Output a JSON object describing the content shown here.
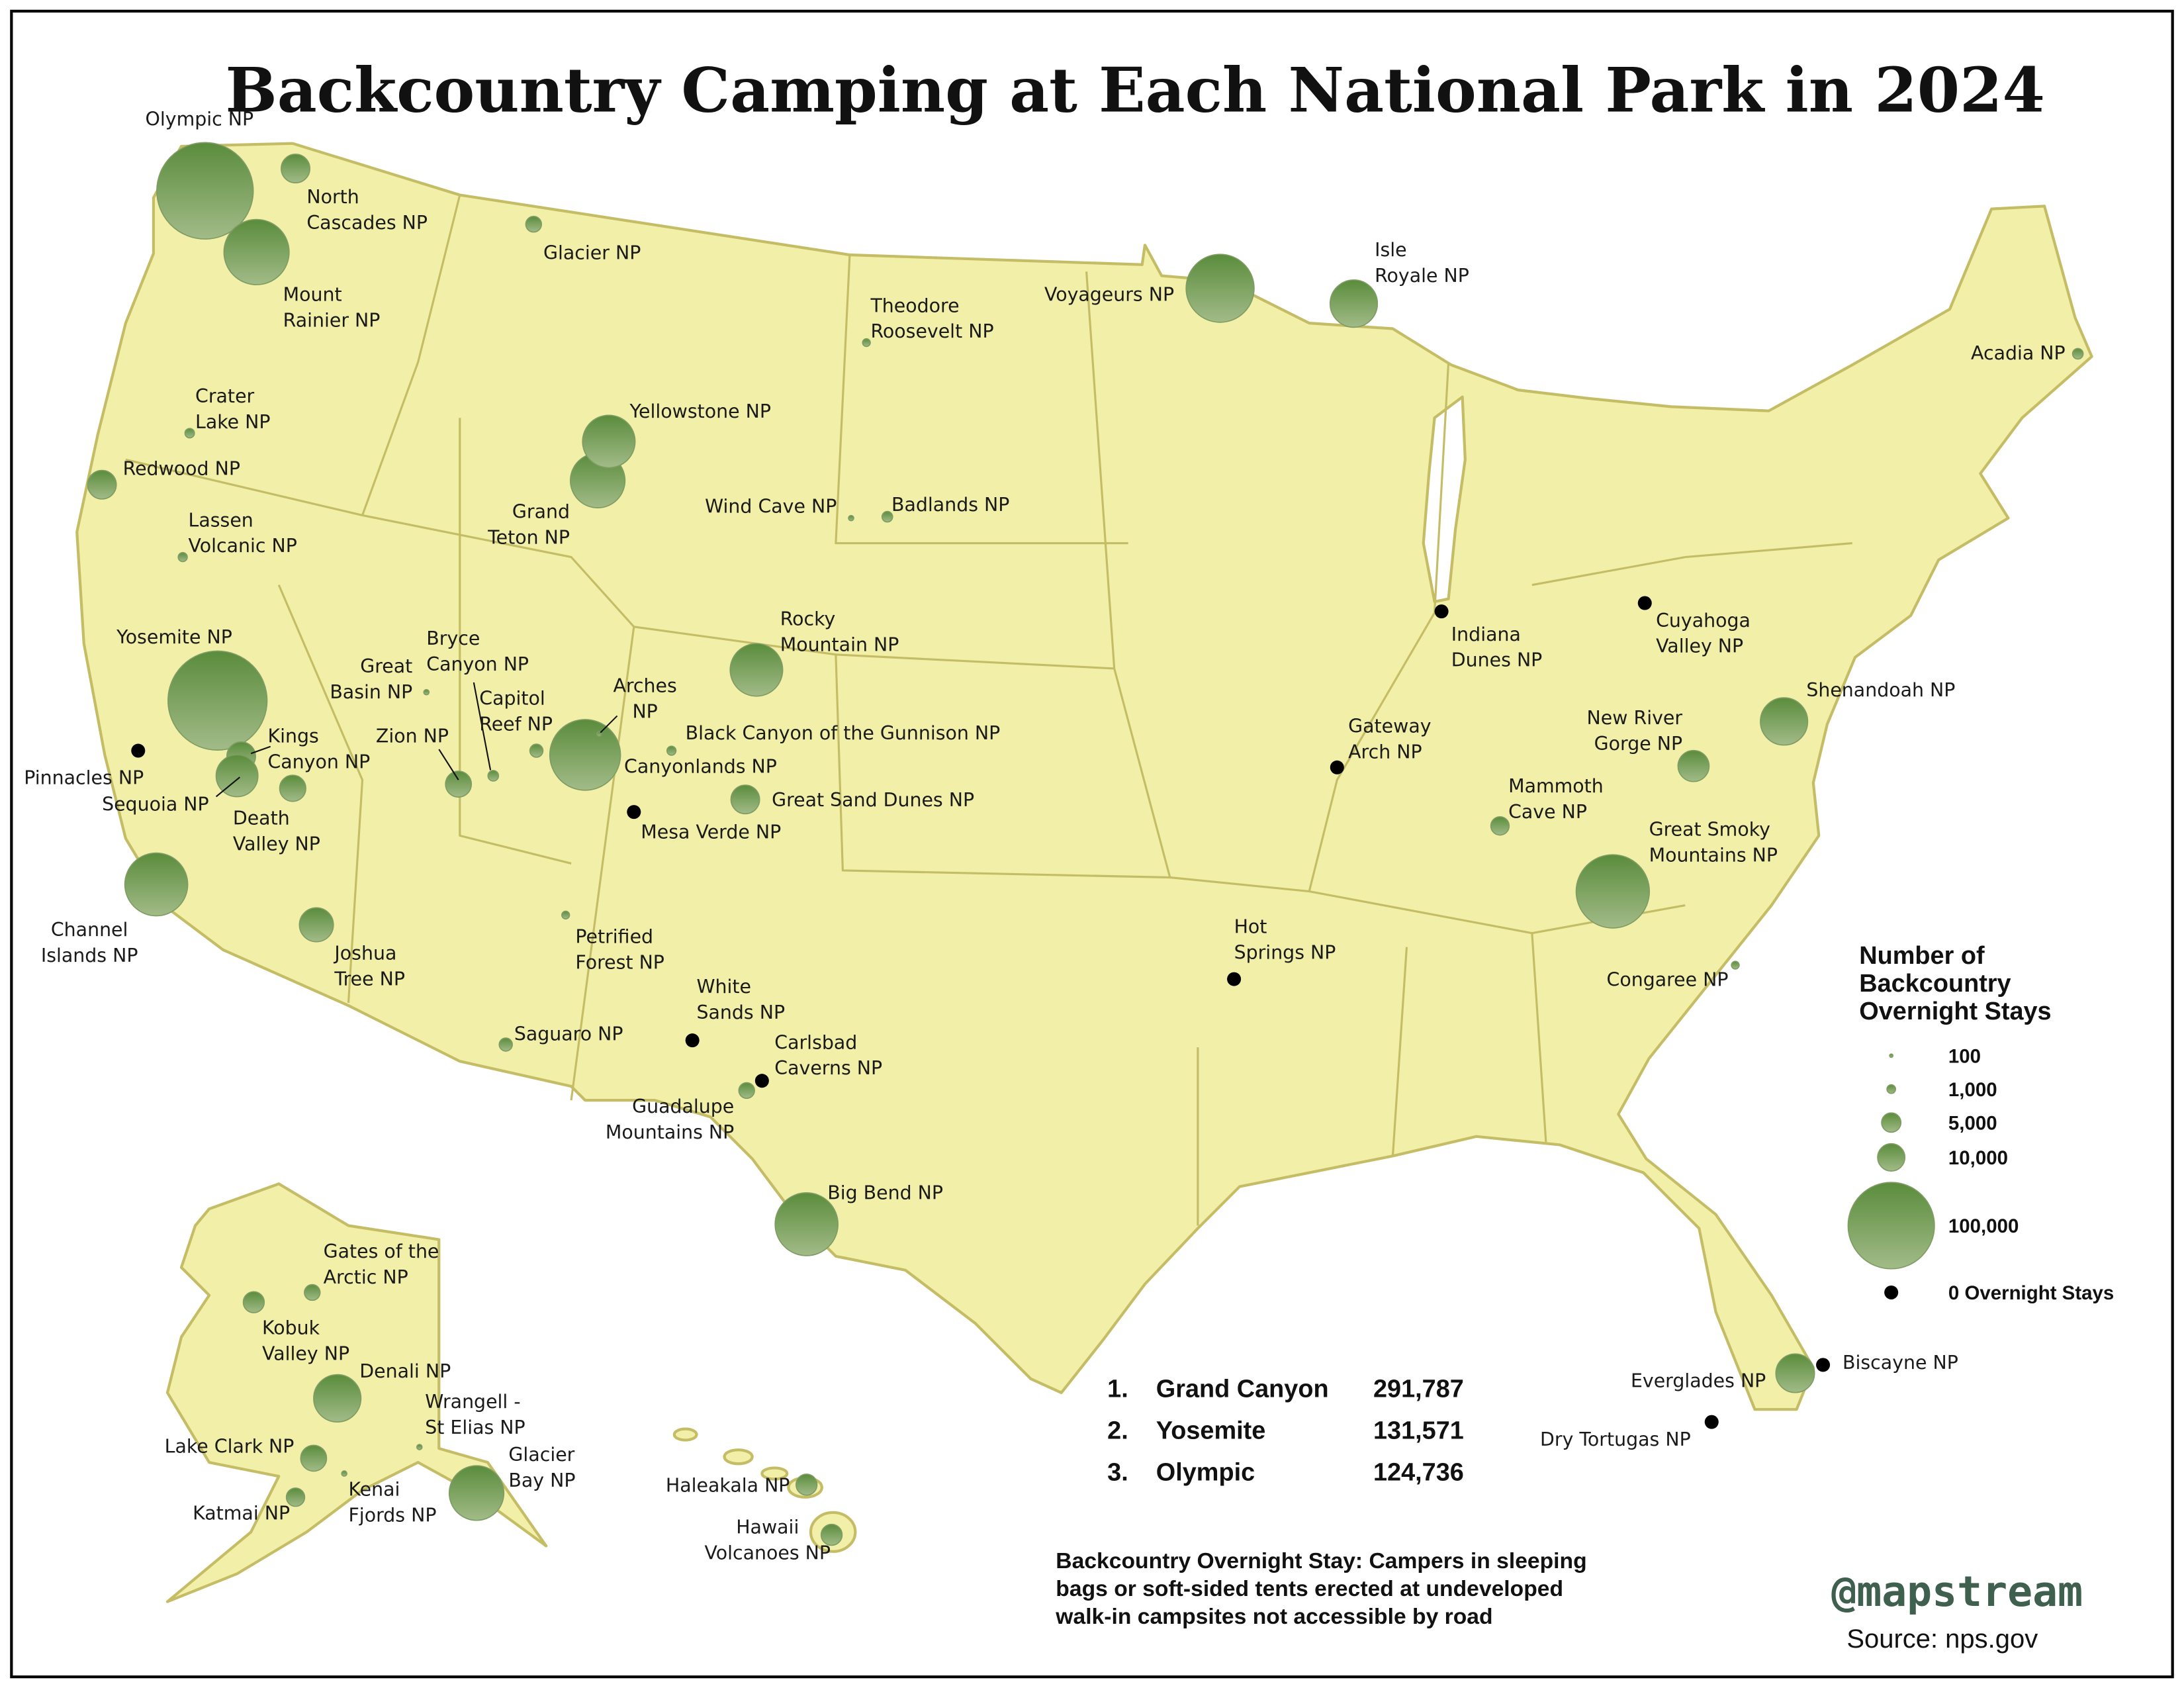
{
  "title": "Backcountry Camping at Each National Park in 2024",
  "colors": {
    "land": "#f2efa8",
    "border": "#c4bd66",
    "bubble_top": "#5a8c3c",
    "bubble_bottom": "#a2bb88",
    "zero": "#000000",
    "watermark": "#3f5f4f"
  },
  "legend": {
    "title_lines": [
      "Number of",
      "Backcountry",
      "Overnight Stays"
    ],
    "items": [
      {
        "value": 100,
        "label": "100"
      },
      {
        "value": 1000,
        "label": "1,000"
      },
      {
        "value": 5000,
        "label": "5,000"
      },
      {
        "value": 10000,
        "label": "10,000"
      },
      {
        "value": 100000,
        "label": "100,000"
      },
      {
        "value": 0,
        "label": "0 Overnight Stays"
      }
    ]
  },
  "top3": [
    {
      "rank": "1.",
      "park": "Grand Canyon",
      "value": "291,787"
    },
    {
      "rank": "2.",
      "park": "Yosemite",
      "value": "131,571"
    },
    {
      "rank": "3.",
      "park": "Olympic",
      "value": "124,736"
    }
  ],
  "note_lines": [
    "Backcountry Overnight Stay: Campers in sleeping",
    "bags or soft-sided tents erected at undeveloped",
    "walk-in campsites not accessible by road"
  ],
  "watermark": "@mapstream",
  "source": "Source: nps.gov",
  "parks": [
    {
      "name": "Olympic NP",
      "value": 124736
    },
    {
      "name": "North Cascades NP",
      "value": 11000
    },
    {
      "name": "Mount Rainier NP",
      "value": 57000
    },
    {
      "name": "Glacier NP",
      "value": 3300
    },
    {
      "name": "Crater Lake NP",
      "value": 1200
    },
    {
      "name": "Redwood NP",
      "value": 11000
    },
    {
      "name": "Lassen Volcanic NP",
      "value": 1100
    },
    {
      "name": "Yosemite NP",
      "value": 131571
    },
    {
      "name": "Kings Canyon NP",
      "value": 11000
    },
    {
      "name": "Sequoia NP",
      "value": 23500
    },
    {
      "name": "Death Valley NP",
      "value": 9200
    },
    {
      "name": "Channel Islands NP",
      "value": 53000
    },
    {
      "name": "Joshua Tree NP",
      "value": 15500
    },
    {
      "name": "Great Basin NP",
      "value": 370
    },
    {
      "name": "Zion NP",
      "value": 9000
    },
    {
      "name": "Bryce Canyon NP",
      "value": 1500
    },
    {
      "name": "Capitol Reef NP",
      "value": 2300
    },
    {
      "name": "Canyonlands NP",
      "value": 67000
    },
    {
      "name": "Arches NP",
      "value": 300
    },
    {
      "name": "Black Canyon of the Gunnison NP",
      "value": 1100
    },
    {
      "name": "Mesa Verde NP",
      "value": 0
    },
    {
      "name": "Great Sand Dunes NP",
      "value": 11000
    },
    {
      "name": "Rocky Mountain NP",
      "value": 37000
    },
    {
      "name": "Grand Teton NP",
      "value": 40000
    },
    {
      "name": "Yellowstone NP",
      "value": 37000
    },
    {
      "name": "Wind Cave NP",
      "value": 370
    },
    {
      "name": "Badlands NP",
      "value": 1500
    },
    {
      "name": "Theodore Roosevelt NP",
      "value": 800
    },
    {
      "name": "Voyageurs NP",
      "value": 62000
    },
    {
      "name": "Isle Royale NP",
      "value": 30000
    },
    {
      "name": "Acadia NP",
      "value": 1500
    },
    {
      "name": "Petrified Forest NP",
      "value": 800
    },
    {
      "name": "Saguaro NP",
      "value": 2300
    },
    {
      "name": "White Sands NP",
      "value": 0
    },
    {
      "name": "Carlsbad Caverns NP",
      "value": 0
    },
    {
      "name": "Guadalupe Mountains NP",
      "value": 3300
    },
    {
      "name": "Big Bend NP",
      "value": 53000
    },
    {
      "name": "Hot Springs NP",
      "value": 0
    },
    {
      "name": "Gateway Arch NP",
      "value": 0
    },
    {
      "name": "Indiana Dunes NP",
      "value": 0
    },
    {
      "name": "Cuyahoga Valley NP",
      "value": 0
    },
    {
      "name": "New River Gorge NP",
      "value": 13000
    },
    {
      "name": "Shenandoah NP",
      "value": 30000
    },
    {
      "name": "Mammoth Cave NP",
      "value": 4500
    },
    {
      "name": "Great Smoky Mountains NP",
      "value": 72000
    },
    {
      "name": "Congaree NP",
      "value": 800
    },
    {
      "name": "Everglades NP",
      "value": 20000
    },
    {
      "name": "Biscayne NP",
      "value": 0
    },
    {
      "name": "Dry Tortugas NP",
      "value": 0
    },
    {
      "name": "Pinnacles NP",
      "value": 0
    },
    {
      "name": "Gates of the Arctic NP",
      "value": 3300
    },
    {
      "name": "Kobuk Valley NP",
      "value": 5900
    },
    {
      "name": "Denali NP",
      "value": 30000
    },
    {
      "name": "Wrangell - St Elias NP",
      "value": 370
    },
    {
      "name": "Lake Clark NP",
      "value": 9000
    },
    {
      "name": "Katmai NP",
      "value": 4500
    },
    {
      "name": "Kenai Fjords NP",
      "value": 370
    },
    {
      "name": "Glacier Bay NP",
      "value": 40000
    },
    {
      "name": "Haleakala NP",
      "value": 5900
    },
    {
      "name": "Hawaii Volcanoes NP",
      "value": 5900
    }
  ]
}
